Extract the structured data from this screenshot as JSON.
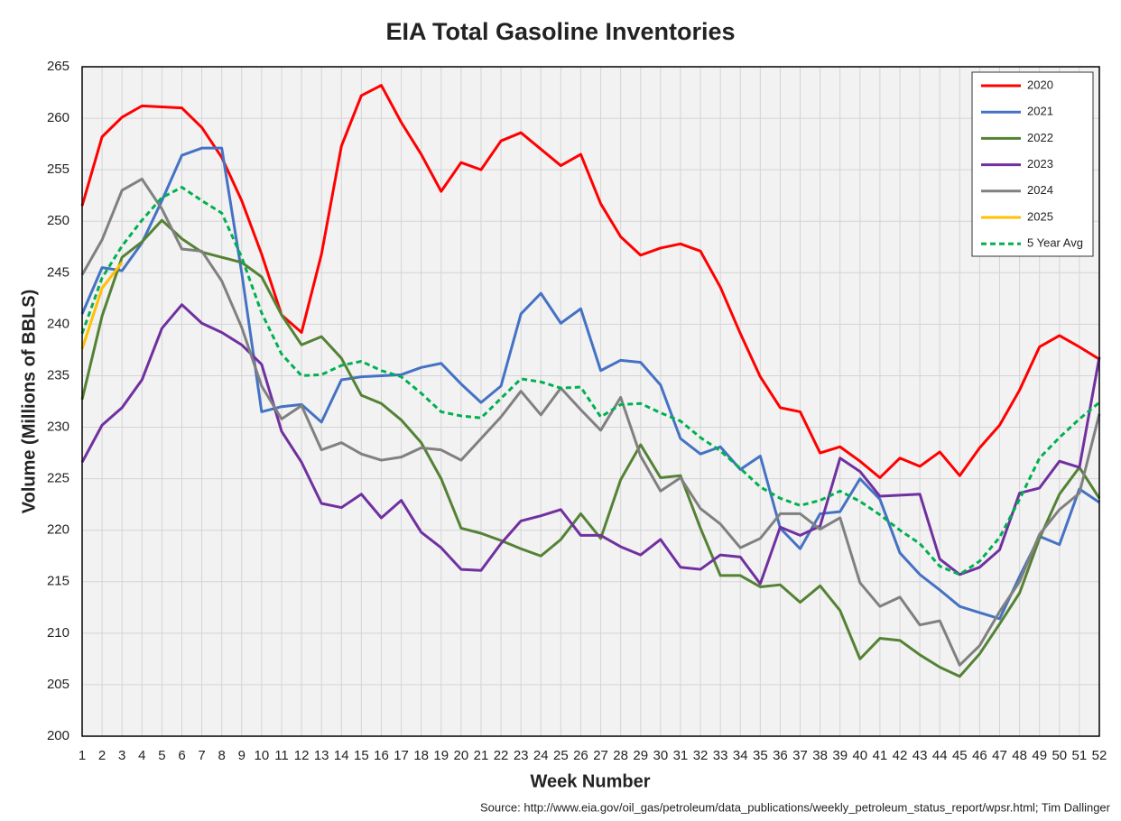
{
  "chart_data": {
    "type": "line",
    "title": "EIA Total Gasoline Inventories",
    "x_label": "Week Number",
    "y_label": "Volume (Millions of BBLS)",
    "source": "Source: http://www.eia.gov/oil_gas/petroleum/data_publications/weekly_petroleum_status_report/wpsr.html; Tim Dallinger",
    "x": [
      1,
      2,
      3,
      4,
      5,
      6,
      7,
      8,
      9,
      10,
      11,
      12,
      13,
      14,
      15,
      16,
      17,
      18,
      19,
      20,
      21,
      22,
      23,
      24,
      25,
      26,
      27,
      28,
      29,
      30,
      31,
      32,
      33,
      34,
      35,
      36,
      37,
      38,
      39,
      40,
      41,
      42,
      43,
      44,
      45,
      46,
      47,
      48,
      49,
      50,
      51,
      52
    ],
    "xlim": [
      1,
      52
    ],
    "xticks": [
      1,
      2,
      3,
      4,
      5,
      6,
      7,
      8,
      9,
      10,
      11,
      12,
      13,
      14,
      15,
      16,
      17,
      18,
      19,
      20,
      21,
      22,
      23,
      24,
      25,
      26,
      27,
      28,
      29,
      30,
      31,
      32,
      33,
      34,
      35,
      36,
      37,
      38,
      39,
      40,
      41,
      42,
      43,
      44,
      45,
      46,
      47,
      48,
      49,
      50,
      51,
      52
    ],
    "ylim": [
      200,
      265
    ],
    "yticks": [
      200,
      205,
      210,
      215,
      220,
      225,
      230,
      235,
      240,
      245,
      250,
      255,
      260,
      265
    ],
    "grid": true,
    "legend": "top-right",
    "series": [
      {
        "name": "2020",
        "color": "#ff0000",
        "dash": false,
        "values": [
          251.5,
          258.2,
          260.1,
          261.2,
          261.1,
          261.0,
          259.1,
          256.2,
          252.0,
          246.8,
          240.9,
          239.2,
          246.8,
          257.3,
          262.2,
          263.2,
          259.6,
          256.5,
          252.9,
          255.7,
          255.0,
          257.8,
          258.6,
          257.0,
          255.4,
          256.5,
          251.7,
          248.5,
          246.7,
          247.4,
          247.8,
          247.1,
          243.6,
          239.1,
          234.9,
          231.9,
          231.5,
          227.5,
          228.1,
          226.7,
          225.1,
          227.0,
          226.2,
          227.6,
          225.3,
          228.0,
          230.2,
          233.6,
          237.8,
          238.9,
          237.8,
          236.6
        ]
      },
      {
        "name": "2021",
        "color": "#4472c4",
        "dash": false,
        "values": [
          241.0,
          245.5,
          245.2,
          247.9,
          252.0,
          256.4,
          257.1,
          257.1,
          245.0,
          231.5,
          232.0,
          232.2,
          230.5,
          234.6,
          234.9,
          235.0,
          235.1,
          235.8,
          236.2,
          234.2,
          232.4,
          234.0,
          241.0,
          243.0,
          240.1,
          241.5,
          235.5,
          236.5,
          236.3,
          234.1,
          228.9,
          227.4,
          228.1,
          225.9,
          227.2,
          220.2,
          218.2,
          221.6,
          221.8,
          225.0,
          223.0,
          217.8,
          215.7,
          214.2,
          212.6,
          212.0,
          211.4,
          215.5,
          219.4,
          218.6,
          224.0,
          222.7
        ]
      },
      {
        "name": "2022",
        "color": "#548235",
        "dash": false,
        "values": [
          232.7,
          240.8,
          246.5,
          248.0,
          250.1,
          248.3,
          247.0,
          246.5,
          246.0,
          244.6,
          240.9,
          238.0,
          238.8,
          236.7,
          233.1,
          232.3,
          230.7,
          228.5,
          225.0,
          220.2,
          219.7,
          219.0,
          218.2,
          217.5,
          219.1,
          221.6,
          219.2,
          224.9,
          228.3,
          225.1,
          225.3,
          220.2,
          215.6,
          215.6,
          214.5,
          214.7,
          213.0,
          214.6,
          212.2,
          207.5,
          209.5,
          209.3,
          207.9,
          206.7,
          205.8,
          208.0,
          210.9,
          213.9,
          219.2,
          223.5,
          226.1,
          223.1
        ]
      },
      {
        "name": "2023",
        "color": "#7030a0",
        "dash": false,
        "values": [
          226.6,
          230.2,
          231.9,
          234.6,
          239.6,
          241.9,
          240.1,
          239.2,
          238.0,
          236.1,
          229.6,
          226.6,
          222.6,
          222.2,
          223.5,
          221.2,
          222.9,
          219.8,
          218.3,
          216.2,
          216.1,
          218.7,
          220.9,
          221.4,
          222.0,
          219.5,
          219.5,
          218.4,
          217.6,
          219.1,
          216.4,
          216.2,
          217.6,
          217.4,
          214.8,
          220.3,
          219.5,
          220.4,
          227.0,
          225.7,
          223.3,
          223.4,
          223.5,
          217.2,
          215.7,
          216.4,
          218.1,
          223.6,
          224.1,
          226.7,
          226.1,
          236.8
        ]
      },
      {
        "name": "2024",
        "color": "#808080",
        "dash": false,
        "values": [
          244.8,
          248.2,
          253.0,
          254.1,
          251.2,
          247.3,
          247.1,
          244.2,
          239.7,
          234.0,
          230.8,
          232.1,
          227.8,
          228.5,
          227.4,
          226.8,
          227.1,
          228.0,
          227.8,
          226.8,
          228.9,
          231.0,
          233.5,
          231.2,
          233.8,
          231.7,
          229.7,
          232.9,
          227.2,
          223.8,
          225.1,
          222.1,
          220.6,
          218.3,
          219.2,
          221.6,
          221.6,
          220.1,
          221.2,
          214.9,
          212.6,
          213.5,
          210.8,
          211.2,
          206.9,
          208.8,
          212.1,
          215.0,
          219.6,
          222.0,
          223.6,
          231.3
        ]
      },
      {
        "name": "2025",
        "color": "#ffc000",
        "dash": false,
        "values": [
          237.6,
          243.5,
          246.0,
          null,
          null,
          null,
          null,
          null,
          null,
          null,
          null,
          null,
          null,
          null,
          null,
          null,
          null,
          null,
          null,
          null,
          null,
          null,
          null,
          null,
          null,
          null,
          null,
          null,
          null,
          null,
          null,
          null,
          null,
          null,
          null,
          null,
          null,
          null,
          null,
          null,
          null,
          null,
          null,
          null,
          null,
          null,
          null,
          null,
          null,
          null,
          null,
          null
        ]
      },
      {
        "name": "5 Year Avg",
        "color": "#00b050",
        "dash": true,
        "values": [
          239.1,
          244.5,
          247.6,
          250.1,
          252.3,
          253.3,
          252.0,
          250.8,
          246.5,
          241.1,
          237.1,
          235.0,
          235.1,
          236.0,
          236.4,
          235.5,
          234.9,
          233.3,
          231.5,
          231.1,
          230.9,
          232.8,
          234.7,
          234.4,
          233.8,
          233.9,
          231.0,
          232.2,
          232.3,
          231.4,
          230.6,
          229.0,
          227.7,
          226.0,
          224.2,
          223.1,
          222.4,
          222.9,
          223.8,
          222.8,
          221.5,
          220.0,
          218.7,
          216.5,
          215.7,
          217.0,
          219.3,
          223.0,
          227.0,
          229.0,
          230.8,
          232.4
        ]
      }
    ]
  }
}
